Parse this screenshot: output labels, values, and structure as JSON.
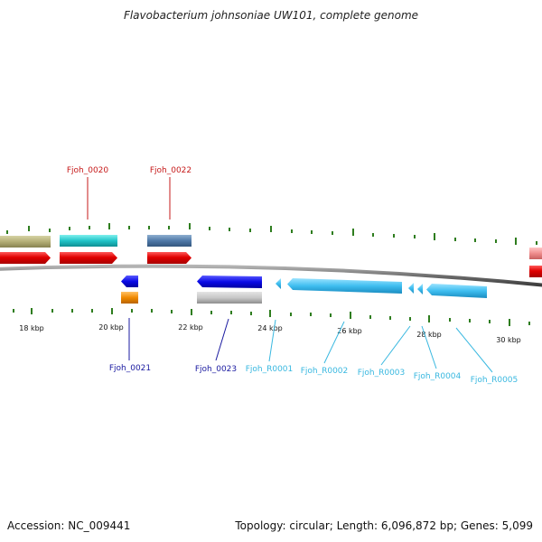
{
  "title": "Flavobacterium johnsoniae UW101, complete genome",
  "footer": {
    "accession": "Accession: NC_009441",
    "stats": "Topology: circular; Length: 6,096,872 bp; Genes: 5,099"
  },
  "colors": {
    "backbone": "#7a7a7a",
    "tick": "#2e7d1e",
    "red_label": "#c61a1a",
    "blue_label": "#1a1aa0",
    "cyan_label": "#39b8e0"
  },
  "scale_labels": [
    "18 kbp",
    "20 kbp",
    "22 kbp",
    "24 kbp",
    "26 kbp",
    "28 kbp",
    "30 kbp"
  ],
  "gene_labels": {
    "top": [
      "Fjoh_0020",
      "Fjoh_0022"
    ],
    "bottom": [
      "Fjoh_0021",
      "Fjoh_0023",
      "Fjoh_R0001",
      "Fjoh_R0002",
      "Fjoh_R0003",
      "Fjoh_R0004",
      "Fjoh_R0005"
    ]
  }
}
